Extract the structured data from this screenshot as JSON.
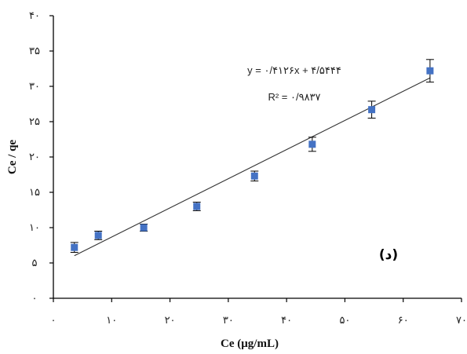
{
  "chart_data": {
    "type": "scatter",
    "xlabel": "Ce (μg/mL)",
    "ylabel": "Ce / qe",
    "xlim": [
      0,
      70
    ],
    "ylim": [
      0,
      40
    ],
    "xticks": [
      0,
      10,
      20,
      30,
      40,
      50,
      60,
      70
    ],
    "yticks": [
      0,
      5,
      10,
      15,
      20,
      25,
      30,
      35,
      40
    ],
    "xtick_labels": [
      "۰",
      "۱۰",
      "۲۰",
      "۳۰",
      "۴۰",
      "۵۰",
      "۶۰",
      "۷۰"
    ],
    "ytick_labels": [
      "۰",
      "۵",
      "۱۰",
      "۱۵",
      "۲۰",
      "۲۵",
      "۳۰",
      "۳۵",
      "۴۰"
    ],
    "points": [
      {
        "x": 3.6,
        "y": 7.2,
        "err": 0.7
      },
      {
        "x": 7.7,
        "y": 8.9,
        "err": 0.6
      },
      {
        "x": 15.5,
        "y": 10.0,
        "err": 0.5
      },
      {
        "x": 24.6,
        "y": 13.0,
        "err": 0.6
      },
      {
        "x": 34.5,
        "y": 17.3,
        "err": 0.7
      },
      {
        "x": 44.4,
        "y": 21.8,
        "err": 1.0
      },
      {
        "x": 54.6,
        "y": 26.7,
        "err": 1.2
      },
      {
        "x": 64.6,
        "y": 32.2,
        "err": 1.6
      }
    ],
    "fit_line": {
      "slope": 0.4126,
      "intercept": 4.5444,
      "x_range": [
        3.6,
        64.6
      ]
    },
    "annotations": {
      "equation": "y = ۰/۴۱۲۶x + ۴/۵۴۴۴",
      "r2": "R² = ۰/۹۸۳۷",
      "panel_label": "(د)"
    },
    "marker_color": "#4472c4",
    "line_color": "#333333",
    "grid": false,
    "legend": "none"
  }
}
